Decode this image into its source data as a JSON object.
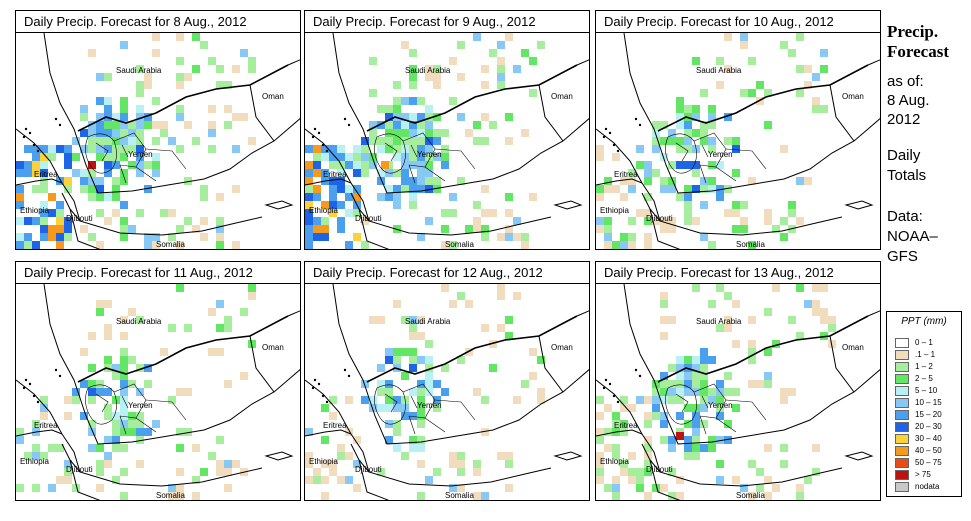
{
  "panels": [
    {
      "title": "Daily Precip. Forecast for  8 Aug., 2012",
      "intensity": "high"
    },
    {
      "title": "Daily Precip. Forecast for  9 Aug., 2012",
      "intensity": "high"
    },
    {
      "title": "Daily Precip. Forecast for  10 Aug., 2012",
      "intensity": "medium"
    },
    {
      "title": "Daily Precip. Forecast for  11 Aug., 2012",
      "intensity": "low"
    },
    {
      "title": "Daily Precip. Forecast for  12 Aug., 2012",
      "intensity": "low"
    },
    {
      "title": "Daily Precip. Forecast for  13 Aug., 2012",
      "intensity": "medium"
    }
  ],
  "map_labels": {
    "saudi": "Saudi Arabia",
    "oman": "Oman",
    "yemen": "Yemen",
    "eritrea": "Eritrea",
    "ethiopia": "Ethiopia",
    "djibouti": "Djibouti",
    "somalia": "Somalia"
  },
  "sidebar": {
    "title_line1": "Precip.",
    "title_line2": "Forecast",
    "asof_line1": "as of:",
    "asof_line2": "8 Aug.",
    "asof_line3": "2012",
    "daily_line1": "Daily",
    "daily_line2": "Totals",
    "data_line1": "Data:",
    "data_line2": "NOAA–",
    "data_line3": "GFS"
  },
  "legend": {
    "title": "PPT (mm)",
    "items": [
      {
        "label": "0 – 1",
        "color": "#ffffff"
      },
      {
        "label": ".1 – 1",
        "color": "#f1dcbe"
      },
      {
        "label": "1 – 2",
        "color": "#a6ee9e"
      },
      {
        "label": "2 – 5",
        "color": "#62e664"
      },
      {
        "label": "5 – 10",
        "color": "#b9f0f4"
      },
      {
        "label": "10 – 15",
        "color": "#87c8f5"
      },
      {
        "label": "15 – 20",
        "color": "#4aa0ee"
      },
      {
        "label": "20 – 30",
        "color": "#1e64e6"
      },
      {
        "label": "30 – 40",
        "color": "#fbd23a"
      },
      {
        "label": "40 – 50",
        "color": "#f59a1c"
      },
      {
        "label": "50 – 75",
        "color": "#eb4b14"
      },
      {
        "label": "> 75",
        "color": "#bd1212"
      },
      {
        "label": "nodata",
        "color": "#c8c8c8"
      }
    ]
  }
}
